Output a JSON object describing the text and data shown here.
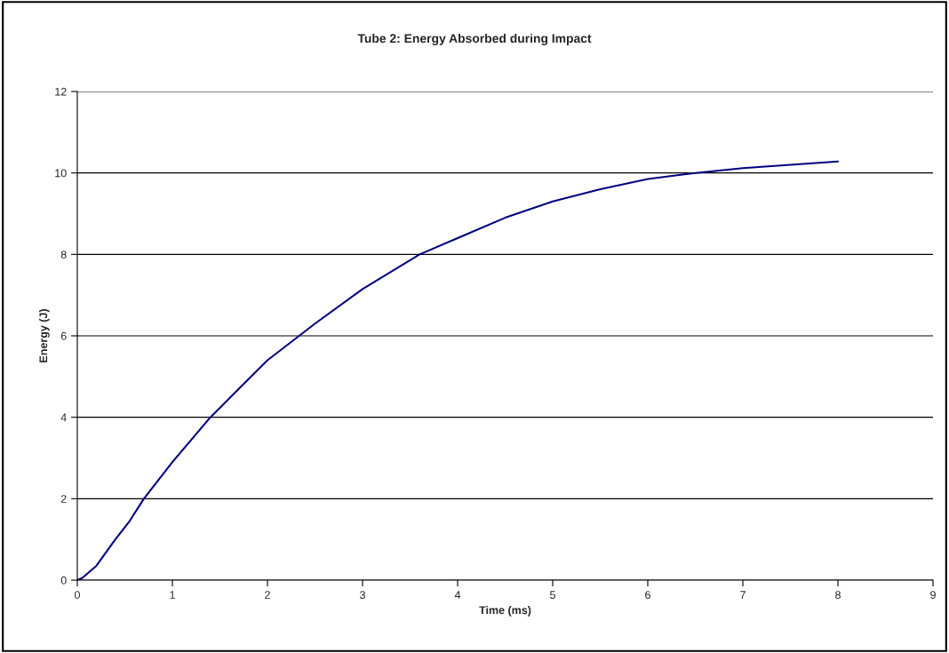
{
  "chart_data": {
    "type": "line",
    "title": "Tube 2: Energy Absorbed during Impact",
    "xlabel": "Time (ms)",
    "ylabel": "Energy (J)",
    "x": [
      0,
      0.05,
      0.2,
      0.4,
      0.55,
      0.7,
      1.0,
      1.4,
      1.7,
      2.0,
      2.5,
      3.0,
      3.6,
      4.0,
      4.5,
      5.0,
      5.5,
      6.0,
      6.5,
      7.0,
      7.5,
      8.0
    ],
    "series": [
      {
        "color": "#000080",
        "values": [
          0,
          0.05,
          0.35,
          1.0,
          1.45,
          2.0,
          2.9,
          4.0,
          4.7,
          5.4,
          6.3,
          7.15,
          8.0,
          8.4,
          8.9,
          9.3,
          9.6,
          9.85,
          10.0,
          10.12,
          10.2,
          10.28
        ]
      }
    ],
    "xlim": [
      0,
      9
    ],
    "xticks": [
      0,
      1,
      2,
      3,
      4,
      5,
      6,
      7,
      8,
      9
    ],
    "ylim": [
      0,
      12
    ],
    "yticks": [
      0,
      2,
      4,
      6,
      8,
      10,
      12
    ],
    "grid": "y",
    "legend": false,
    "marker": "none",
    "line_style": "solid"
  }
}
